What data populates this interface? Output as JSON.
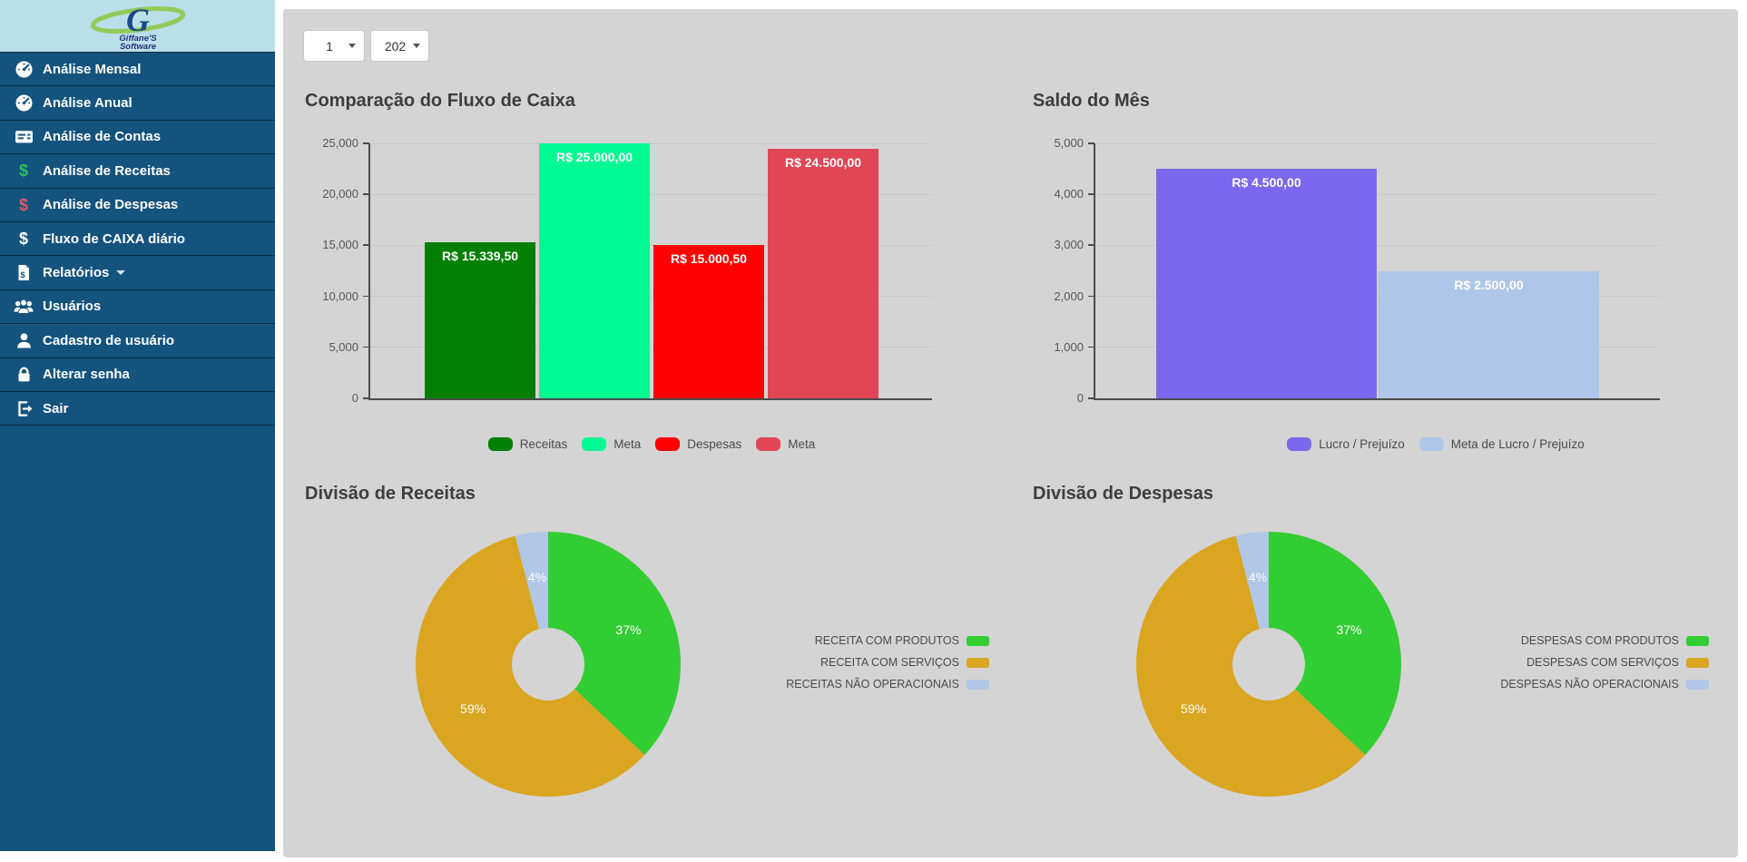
{
  "logo": {
    "line1": "Giffane'S",
    "line2": "Software"
  },
  "filters": {
    "month": {
      "value": "1"
    },
    "year": {
      "value": "202"
    }
  },
  "sidebar": {
    "items": [
      {
        "id": "analise-mensal",
        "label": "Análise Mensal",
        "icon": "gauge-icon"
      },
      {
        "id": "analise-anual",
        "label": "Análise Anual",
        "icon": "gauge-icon"
      },
      {
        "id": "analise-de-contas",
        "label": "Análise de Contas",
        "icon": "card-icon"
      },
      {
        "id": "analise-de-receitas",
        "label": "Análise de Receitas",
        "icon": "dollar-green-icon"
      },
      {
        "id": "analise-de-despesas",
        "label": "Análise de Despesas",
        "icon": "dollar-red-icon"
      },
      {
        "id": "fluxo-de-caixa-diario",
        "label": "Fluxo de CAIXA diário",
        "icon": "dollar-white-icon"
      },
      {
        "id": "relatorios",
        "label": "Relatórios",
        "icon": "report-icon",
        "caret": true
      },
      {
        "id": "usuarios",
        "label": "Usuários",
        "icon": "users-icon"
      },
      {
        "id": "cadastro-de-usuario",
        "label": "Cadastro de usuário",
        "icon": "user-icon"
      },
      {
        "id": "alterar-senha",
        "label": "Alterar senha",
        "icon": "lock-icon"
      },
      {
        "id": "sair",
        "label": "Sair",
        "icon": "signout-icon"
      }
    ]
  },
  "colors": {
    "sidebar_bg": "#14537D",
    "logo_bg": "#B9DFE8",
    "panel_bg": "#D4D4D4",
    "receitas": "#008000",
    "meta_receitas": "#00FA92",
    "despesas": "#FE0000",
    "meta_despesas": "#E04653",
    "lucro": "#7B68EE",
    "meta_lucro": "#AEC6E8",
    "pie_green": "#32CD32",
    "pie_gold": "#DAA520",
    "pie_blue": "#B0C7E6"
  },
  "chart_data": [
    {
      "id": "fluxo",
      "type": "bar",
      "title": "Comparação do Fluxo de Caixa",
      "ylim": [
        0,
        25000
      ],
      "ytick_values": [
        0,
        5000,
        10000,
        15000,
        20000,
        25000
      ],
      "yticks": [
        "0",
        "5,000",
        "10,000",
        "15,000",
        "20,000",
        "25,000"
      ],
      "bars": [
        {
          "name": "Receitas",
          "value": 15339.5,
          "value_label": "R$ 15.339,50",
          "color": "#008000"
        },
        {
          "name": "Meta",
          "value": 25000,
          "value_label": "R$ 25.000,00",
          "color": "#00FA92"
        },
        {
          "name": "Despesas",
          "value": 15000.5,
          "value_label": "R$ 15.000,50",
          "color": "#FE0000"
        },
        {
          "name": "Meta",
          "value": 24500,
          "value_label": "R$ 24.500,00",
          "color": "#E04653"
        }
      ],
      "legend": [
        {
          "label": "Receitas",
          "color": "#008000"
        },
        {
          "label": "Meta",
          "color": "#00FA92"
        },
        {
          "label": "Despesas",
          "color": "#FE0000"
        },
        {
          "label": "Meta",
          "color": "#E04653"
        }
      ]
    },
    {
      "id": "saldo",
      "type": "bar",
      "title": "Saldo do Mês",
      "ylim": [
        0,
        5000
      ],
      "ytick_values": [
        0,
        1000,
        2000,
        3000,
        4000,
        5000
      ],
      "yticks": [
        "0",
        "1,000",
        "2,000",
        "3,000",
        "4,000",
        "5,000"
      ],
      "bars": [
        {
          "name": "Lucro / Prejuízo",
          "value": 4500,
          "value_label": "R$ 4.500,00",
          "color": "#7B68EE"
        },
        {
          "name": "Meta de Lucro / Prejuízo",
          "value": 2500,
          "value_label": "R$ 2.500,00",
          "color": "#AEC6E8"
        }
      ],
      "legend": [
        {
          "label": "Lucro / Prejuízo",
          "color": "#7B68EE"
        },
        {
          "label": "Meta de Lucro / Prejuízo",
          "color": "#AEC6E8"
        }
      ]
    },
    {
      "id": "receitas",
      "type": "donut",
      "title": "Divisão de Receitas",
      "slices": [
        {
          "label": "RECEITA COM PRODUTOS",
          "pct": 37,
          "pct_label": "37%",
          "color": "#32CD32"
        },
        {
          "label": "RECEITA COM SERVIÇOS",
          "pct": 59,
          "pct_label": "59%",
          "color": "#DAA520"
        },
        {
          "label": "RECEITAS NÃO OPERACIONAIS",
          "pct": 4,
          "pct_label": "4%",
          "color": "#B0C7E6"
        }
      ]
    },
    {
      "id": "despesas",
      "type": "donut",
      "title": "Divisão de Despesas",
      "slices": [
        {
          "label": "DESPESAS COM PRODUTOS",
          "pct": 37,
          "pct_label": "37%",
          "color": "#32CD32"
        },
        {
          "label": "DESPESAS COM SERVIÇOS",
          "pct": 59,
          "pct_label": "59%",
          "color": "#DAA520"
        },
        {
          "label": "DESPESAS NÃO OPERACIONAIS",
          "pct": 4,
          "pct_label": "4%",
          "color": "#B0C7E6"
        }
      ]
    }
  ]
}
